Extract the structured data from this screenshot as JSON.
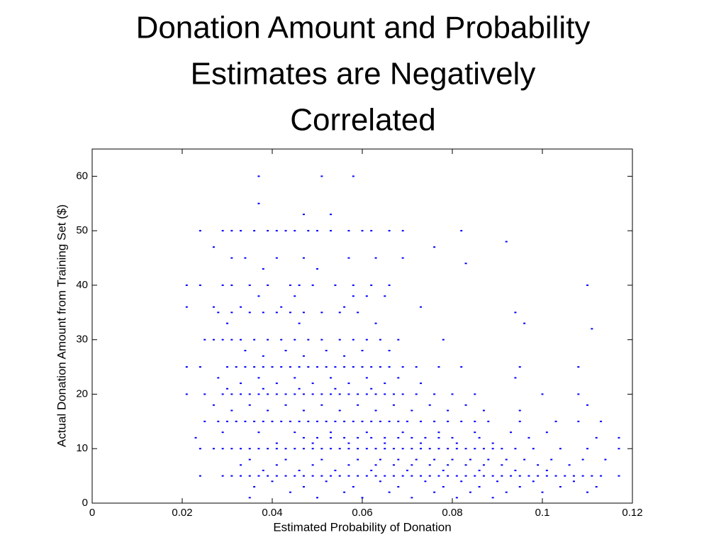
{
  "chart_data": {
    "type": "scatter",
    "title": [
      "Donation Amount and Probability",
      "Estimates are Negatively",
      "Correlated"
    ],
    "xlabel": "Estimated Probability of Donation",
    "ylabel": "Actual Donation Amount from Training Set ($)",
    "color": "#0000ff",
    "xlim": [
      0,
      0.12
    ],
    "xticks": [
      0,
      0.02,
      0.04,
      0.06,
      0.08,
      0.1,
      0.12
    ],
    "ylim": [
      0,
      65
    ],
    "yticks": [
      0,
      10,
      20,
      30,
      40,
      50,
      60
    ],
    "points": [
      [
        0.037,
        60
      ],
      [
        0.051,
        60
      ],
      [
        0.058,
        60
      ],
      [
        0.037,
        55
      ],
      [
        0.047,
        53
      ],
      [
        0.053,
        53
      ],
      [
        0.024,
        50
      ],
      [
        0.029,
        50
      ],
      [
        0.031,
        50
      ],
      [
        0.033,
        50
      ],
      [
        0.036,
        50
      ],
      [
        0.039,
        50
      ],
      [
        0.041,
        50
      ],
      [
        0.043,
        50
      ],
      [
        0.045,
        50
      ],
      [
        0.048,
        50
      ],
      [
        0.05,
        50
      ],
      [
        0.053,
        50
      ],
      [
        0.057,
        50
      ],
      [
        0.06,
        50
      ],
      [
        0.062,
        50
      ],
      [
        0.066,
        50
      ],
      [
        0.069,
        50
      ],
      [
        0.082,
        50
      ],
      [
        0.092,
        48
      ],
      [
        0.027,
        47
      ],
      [
        0.076,
        47
      ],
      [
        0.031,
        45
      ],
      [
        0.034,
        45
      ],
      [
        0.041,
        45
      ],
      [
        0.047,
        45
      ],
      [
        0.057,
        45
      ],
      [
        0.063,
        45
      ],
      [
        0.069,
        45
      ],
      [
        0.083,
        44
      ],
      [
        0.038,
        43
      ],
      [
        0.05,
        43
      ],
      [
        0.021,
        40
      ],
      [
        0.024,
        40
      ],
      [
        0.029,
        40
      ],
      [
        0.031,
        40
      ],
      [
        0.035,
        40
      ],
      [
        0.039,
        40
      ],
      [
        0.044,
        40
      ],
      [
        0.046,
        40
      ],
      [
        0.049,
        40
      ],
      [
        0.054,
        40
      ],
      [
        0.058,
        40
      ],
      [
        0.062,
        40
      ],
      [
        0.066,
        40
      ],
      [
        0.11,
        40
      ],
      [
        0.037,
        38
      ],
      [
        0.045,
        38
      ],
      [
        0.058,
        38
      ],
      [
        0.061,
        38
      ],
      [
        0.065,
        38
      ],
      [
        0.021,
        36
      ],
      [
        0.027,
        36
      ],
      [
        0.033,
        36
      ],
      [
        0.042,
        36
      ],
      [
        0.056,
        36
      ],
      [
        0.073,
        36
      ],
      [
        0.028,
        35
      ],
      [
        0.031,
        35
      ],
      [
        0.035,
        35
      ],
      [
        0.038,
        35
      ],
      [
        0.041,
        35
      ],
      [
        0.044,
        35
      ],
      [
        0.047,
        35
      ],
      [
        0.051,
        35
      ],
      [
        0.055,
        35
      ],
      [
        0.059,
        35
      ],
      [
        0.094,
        35
      ],
      [
        0.03,
        33
      ],
      [
        0.046,
        33
      ],
      [
        0.063,
        33
      ],
      [
        0.096,
        33
      ],
      [
        0.111,
        32
      ],
      [
        0.025,
        30
      ],
      [
        0.027,
        30
      ],
      [
        0.029,
        30
      ],
      [
        0.031,
        30
      ],
      [
        0.033,
        30
      ],
      [
        0.036,
        30
      ],
      [
        0.039,
        30
      ],
      [
        0.042,
        30
      ],
      [
        0.045,
        30
      ],
      [
        0.048,
        30
      ],
      [
        0.051,
        30
      ],
      [
        0.055,
        30
      ],
      [
        0.058,
        30
      ],
      [
        0.061,
        30
      ],
      [
        0.064,
        30
      ],
      [
        0.068,
        30
      ],
      [
        0.078,
        30
      ],
      [
        0.034,
        28
      ],
      [
        0.043,
        28
      ],
      [
        0.052,
        28
      ],
      [
        0.06,
        28
      ],
      [
        0.066,
        28
      ],
      [
        0.038,
        27
      ],
      [
        0.047,
        27
      ],
      [
        0.056,
        27
      ],
      [
        0.021,
        25
      ],
      [
        0.024,
        25
      ],
      [
        0.03,
        25
      ],
      [
        0.032,
        25
      ],
      [
        0.034,
        25
      ],
      [
        0.036,
        25
      ],
      [
        0.038,
        25
      ],
      [
        0.04,
        25
      ],
      [
        0.042,
        25
      ],
      [
        0.044,
        25
      ],
      [
        0.046,
        25
      ],
      [
        0.048,
        25
      ],
      [
        0.05,
        25
      ],
      [
        0.052,
        25
      ],
      [
        0.054,
        25
      ],
      [
        0.056,
        25
      ],
      [
        0.058,
        25
      ],
      [
        0.06,
        25
      ],
      [
        0.062,
        25
      ],
      [
        0.064,
        25
      ],
      [
        0.066,
        25
      ],
      [
        0.069,
        25
      ],
      [
        0.072,
        25
      ],
      [
        0.077,
        25
      ],
      [
        0.082,
        25
      ],
      [
        0.095,
        25
      ],
      [
        0.108,
        25
      ],
      [
        0.028,
        23
      ],
      [
        0.037,
        23
      ],
      [
        0.045,
        23
      ],
      [
        0.053,
        23
      ],
      [
        0.061,
        23
      ],
      [
        0.068,
        23
      ],
      [
        0.094,
        23
      ],
      [
        0.033,
        22
      ],
      [
        0.041,
        22
      ],
      [
        0.049,
        22
      ],
      [
        0.057,
        22
      ],
      [
        0.065,
        22
      ],
      [
        0.073,
        22
      ],
      [
        0.03,
        21
      ],
      [
        0.038,
        21
      ],
      [
        0.046,
        21
      ],
      [
        0.054,
        21
      ],
      [
        0.062,
        21
      ],
      [
        0.021,
        20
      ],
      [
        0.025,
        20
      ],
      [
        0.029,
        20
      ],
      [
        0.031,
        20
      ],
      [
        0.033,
        20
      ],
      [
        0.035,
        20
      ],
      [
        0.037,
        20
      ],
      [
        0.039,
        20
      ],
      [
        0.041,
        20
      ],
      [
        0.043,
        20
      ],
      [
        0.045,
        20
      ],
      [
        0.047,
        20
      ],
      [
        0.049,
        20
      ],
      [
        0.051,
        20
      ],
      [
        0.053,
        20
      ],
      [
        0.055,
        20
      ],
      [
        0.057,
        20
      ],
      [
        0.059,
        20
      ],
      [
        0.061,
        20
      ],
      [
        0.063,
        20
      ],
      [
        0.065,
        20
      ],
      [
        0.067,
        20
      ],
      [
        0.069,
        20
      ],
      [
        0.072,
        20
      ],
      [
        0.076,
        20
      ],
      [
        0.08,
        20
      ],
      [
        0.085,
        20
      ],
      [
        0.1,
        20
      ],
      [
        0.108,
        20
      ],
      [
        0.027,
        18
      ],
      [
        0.035,
        18
      ],
      [
        0.043,
        18
      ],
      [
        0.051,
        18
      ],
      [
        0.059,
        18
      ],
      [
        0.067,
        18
      ],
      [
        0.075,
        18
      ],
      [
        0.083,
        18
      ],
      [
        0.11,
        18
      ],
      [
        0.031,
        17
      ],
      [
        0.039,
        17
      ],
      [
        0.047,
        17
      ],
      [
        0.055,
        17
      ],
      [
        0.063,
        17
      ],
      [
        0.071,
        17
      ],
      [
        0.079,
        17
      ],
      [
        0.087,
        17
      ],
      [
        0.095,
        17
      ],
      [
        0.025,
        15
      ],
      [
        0.028,
        15
      ],
      [
        0.03,
        15
      ],
      [
        0.032,
        15
      ],
      [
        0.034,
        15
      ],
      [
        0.036,
        15
      ],
      [
        0.038,
        15
      ],
      [
        0.04,
        15
      ],
      [
        0.042,
        15
      ],
      [
        0.044,
        15
      ],
      [
        0.046,
        15
      ],
      [
        0.048,
        15
      ],
      [
        0.05,
        15
      ],
      [
        0.052,
        15
      ],
      [
        0.054,
        15
      ],
      [
        0.056,
        15
      ],
      [
        0.058,
        15
      ],
      [
        0.06,
        15
      ],
      [
        0.062,
        15
      ],
      [
        0.064,
        15
      ],
      [
        0.066,
        15
      ],
      [
        0.068,
        15
      ],
      [
        0.07,
        15
      ],
      [
        0.073,
        15
      ],
      [
        0.076,
        15
      ],
      [
        0.079,
        15
      ],
      [
        0.082,
        15
      ],
      [
        0.085,
        15
      ],
      [
        0.088,
        15
      ],
      [
        0.095,
        15
      ],
      [
        0.103,
        15
      ],
      [
        0.108,
        15
      ],
      [
        0.113,
        15
      ],
      [
        0.029,
        13
      ],
      [
        0.037,
        13
      ],
      [
        0.045,
        13
      ],
      [
        0.053,
        13
      ],
      [
        0.061,
        13
      ],
      [
        0.069,
        13
      ],
      [
        0.077,
        13
      ],
      [
        0.085,
        13
      ],
      [
        0.093,
        13
      ],
      [
        0.101,
        13
      ],
      [
        0.023,
        12
      ],
      [
        0.047,
        12
      ],
      [
        0.05,
        12
      ],
      [
        0.053,
        12
      ],
      [
        0.056,
        12
      ],
      [
        0.059,
        12
      ],
      [
        0.062,
        12
      ],
      [
        0.065,
        12
      ],
      [
        0.068,
        12
      ],
      [
        0.071,
        12
      ],
      [
        0.074,
        12
      ],
      [
        0.077,
        12
      ],
      [
        0.08,
        12
      ],
      [
        0.086,
        12
      ],
      [
        0.097,
        12
      ],
      [
        0.112,
        12
      ],
      [
        0.117,
        12
      ],
      [
        0.041,
        11
      ],
      [
        0.049,
        11
      ],
      [
        0.057,
        11
      ],
      [
        0.065,
        11
      ],
      [
        0.073,
        11
      ],
      [
        0.081,
        11
      ],
      [
        0.089,
        11
      ],
      [
        0.024,
        10
      ],
      [
        0.027,
        10
      ],
      [
        0.029,
        10
      ],
      [
        0.031,
        10
      ],
      [
        0.033,
        10
      ],
      [
        0.035,
        10
      ],
      [
        0.037,
        10
      ],
      [
        0.039,
        10
      ],
      [
        0.041,
        10
      ],
      [
        0.043,
        10
      ],
      [
        0.045,
        10
      ],
      [
        0.047,
        10
      ],
      [
        0.049,
        10
      ],
      [
        0.051,
        10
      ],
      [
        0.053,
        10
      ],
      [
        0.055,
        10
      ],
      [
        0.057,
        10
      ],
      [
        0.059,
        10
      ],
      [
        0.061,
        10
      ],
      [
        0.063,
        10
      ],
      [
        0.065,
        10
      ],
      [
        0.067,
        10
      ],
      [
        0.069,
        10
      ],
      [
        0.071,
        10
      ],
      [
        0.073,
        10
      ],
      [
        0.075,
        10
      ],
      [
        0.077,
        10
      ],
      [
        0.079,
        10
      ],
      [
        0.081,
        10
      ],
      [
        0.083,
        10
      ],
      [
        0.085,
        10
      ],
      [
        0.087,
        10
      ],
      [
        0.089,
        10
      ],
      [
        0.091,
        10
      ],
      [
        0.094,
        10
      ],
      [
        0.098,
        10
      ],
      [
        0.104,
        10
      ],
      [
        0.11,
        10
      ],
      [
        0.117,
        10
      ],
      [
        0.035,
        8
      ],
      [
        0.043,
        8
      ],
      [
        0.051,
        8
      ],
      [
        0.059,
        8
      ],
      [
        0.064,
        8
      ],
      [
        0.068,
        8
      ],
      [
        0.072,
        8
      ],
      [
        0.076,
        8
      ],
      [
        0.08,
        8
      ],
      [
        0.084,
        8
      ],
      [
        0.088,
        8
      ],
      [
        0.092,
        8
      ],
      [
        0.096,
        8
      ],
      [
        0.102,
        8
      ],
      [
        0.109,
        8
      ],
      [
        0.114,
        8
      ],
      [
        0.033,
        7
      ],
      [
        0.041,
        7
      ],
      [
        0.049,
        7
      ],
      [
        0.057,
        7
      ],
      [
        0.063,
        7
      ],
      [
        0.067,
        7
      ],
      [
        0.071,
        7
      ],
      [
        0.075,
        7
      ],
      [
        0.079,
        7
      ],
      [
        0.083,
        7
      ],
      [
        0.087,
        7
      ],
      [
        0.091,
        7
      ],
      [
        0.099,
        7
      ],
      [
        0.106,
        7
      ],
      [
        0.038,
        6
      ],
      [
        0.046,
        6
      ],
      [
        0.054,
        6
      ],
      [
        0.062,
        6
      ],
      [
        0.07,
        6
      ],
      [
        0.078,
        6
      ],
      [
        0.086,
        6
      ],
      [
        0.094,
        6
      ],
      [
        0.101,
        6
      ],
      [
        0.024,
        5
      ],
      [
        0.029,
        5
      ],
      [
        0.031,
        5
      ],
      [
        0.033,
        5
      ],
      [
        0.035,
        5
      ],
      [
        0.037,
        5
      ],
      [
        0.039,
        5
      ],
      [
        0.041,
        5
      ],
      [
        0.043,
        5
      ],
      [
        0.045,
        5
      ],
      [
        0.047,
        5
      ],
      [
        0.049,
        5
      ],
      [
        0.051,
        5
      ],
      [
        0.053,
        5
      ],
      [
        0.055,
        5
      ],
      [
        0.057,
        5
      ],
      [
        0.059,
        5
      ],
      [
        0.061,
        5
      ],
      [
        0.063,
        5
      ],
      [
        0.065,
        5
      ],
      [
        0.067,
        5
      ],
      [
        0.069,
        5
      ],
      [
        0.071,
        5
      ],
      [
        0.073,
        5
      ],
      [
        0.075,
        5
      ],
      [
        0.077,
        5
      ],
      [
        0.079,
        5
      ],
      [
        0.081,
        5
      ],
      [
        0.083,
        5
      ],
      [
        0.085,
        5
      ],
      [
        0.087,
        5
      ],
      [
        0.089,
        5
      ],
      [
        0.091,
        5
      ],
      [
        0.093,
        5
      ],
      [
        0.095,
        5
      ],
      [
        0.097,
        5
      ],
      [
        0.099,
        5
      ],
      [
        0.101,
        5
      ],
      [
        0.103,
        5
      ],
      [
        0.105,
        5
      ],
      [
        0.107,
        5
      ],
      [
        0.109,
        5
      ],
      [
        0.111,
        5
      ],
      [
        0.113,
        5
      ],
      [
        0.117,
        5
      ],
      [
        0.04,
        4
      ],
      [
        0.052,
        4
      ],
      [
        0.064,
        4
      ],
      [
        0.074,
        4
      ],
      [
        0.082,
        4
      ],
      [
        0.09,
        4
      ],
      [
        0.098,
        4
      ],
      [
        0.107,
        4
      ],
      [
        0.036,
        3
      ],
      [
        0.047,
        3
      ],
      [
        0.058,
        3
      ],
      [
        0.068,
        3
      ],
      [
        0.078,
        3
      ],
      [
        0.086,
        3
      ],
      [
        0.095,
        3
      ],
      [
        0.104,
        3
      ],
      [
        0.112,
        3
      ],
      [
        0.044,
        2
      ],
      [
        0.056,
        2
      ],
      [
        0.066,
        2
      ],
      [
        0.076,
        2
      ],
      [
        0.084,
        2
      ],
      [
        0.092,
        2
      ],
      [
        0.1,
        2
      ],
      [
        0.11,
        2
      ],
      [
        0.035,
        1
      ],
      [
        0.05,
        1
      ],
      [
        0.06,
        1
      ],
      [
        0.071,
        1
      ],
      [
        0.081,
        1
      ],
      [
        0.089,
        1
      ]
    ]
  }
}
